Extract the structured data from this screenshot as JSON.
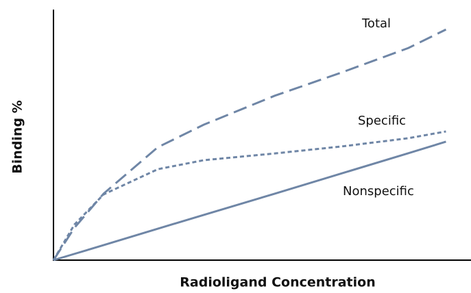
{
  "chart_data": {
    "type": "line",
    "x_label": "Radioligand Concentration",
    "y_label": "Binding %",
    "x": [
      0,
      5,
      12,
      25,
      36,
      53,
      69,
      85,
      94
    ],
    "xlim": [
      0,
      100
    ],
    "ylim": [
      0,
      100
    ],
    "series": [
      {
        "name": "Total",
        "color": "#6f86a6",
        "dash": "long",
        "values": [
          0,
          12.9,
          26.6,
          45.2,
          54.2,
          65.8,
          75.1,
          84.9,
          92.3
        ]
      },
      {
        "name": "Specific",
        "color": "#6f86a6",
        "dash": "short",
        "values": [
          0,
          14.2,
          26.3,
          36.4,
          40,
          42.7,
          45.5,
          48.8,
          51.5
        ]
      },
      {
        "name": "Nonspecific",
        "color": "#6f86a6",
        "dash": "solid",
        "values": [
          0,
          2.5,
          6.0,
          12.6,
          18.1,
          26.6,
          34.7,
          42.8,
          47.4
        ]
      }
    ]
  }
}
